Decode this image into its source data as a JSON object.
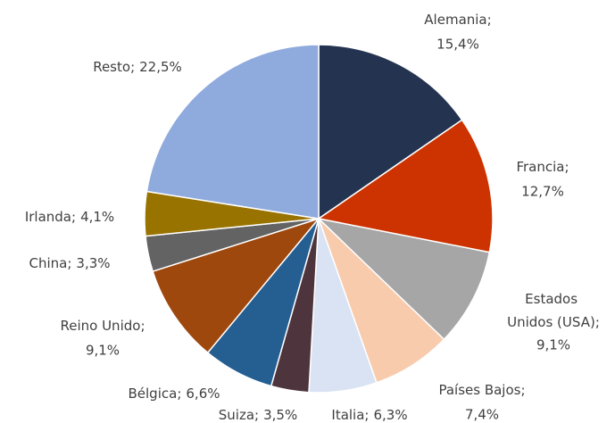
{
  "chart_data": {
    "type": "pie",
    "categories": [
      "Alemania",
      "Francia",
      "Estados Unidos (USA)",
      "Países Bajos",
      "Italia",
      "Suiza",
      "Bélgica",
      "Reino Unido",
      "China",
      "Irlanda",
      "Resto"
    ],
    "values": [
      15.4,
      12.7,
      9.1,
      7.4,
      6.3,
      3.5,
      6.6,
      9.1,
      3.3,
      4.1,
      22.5
    ],
    "value_labels": [
      "15,4%",
      "12,7%",
      "9,1%",
      "7,4%",
      "6,3%",
      "3,5%",
      "6,6%",
      "9,1%",
      "3,3%",
      "4,1%",
      "22,5%"
    ],
    "separator": ";",
    "colors": [
      "#243450",
      "#cc3300",
      "#a6a6a6",
      "#f8cbad",
      "#dae3f3",
      "#4e343c",
      "#255e91",
      "#9e480e",
      "#636363",
      "#997300",
      "#8faadc"
    ]
  }
}
